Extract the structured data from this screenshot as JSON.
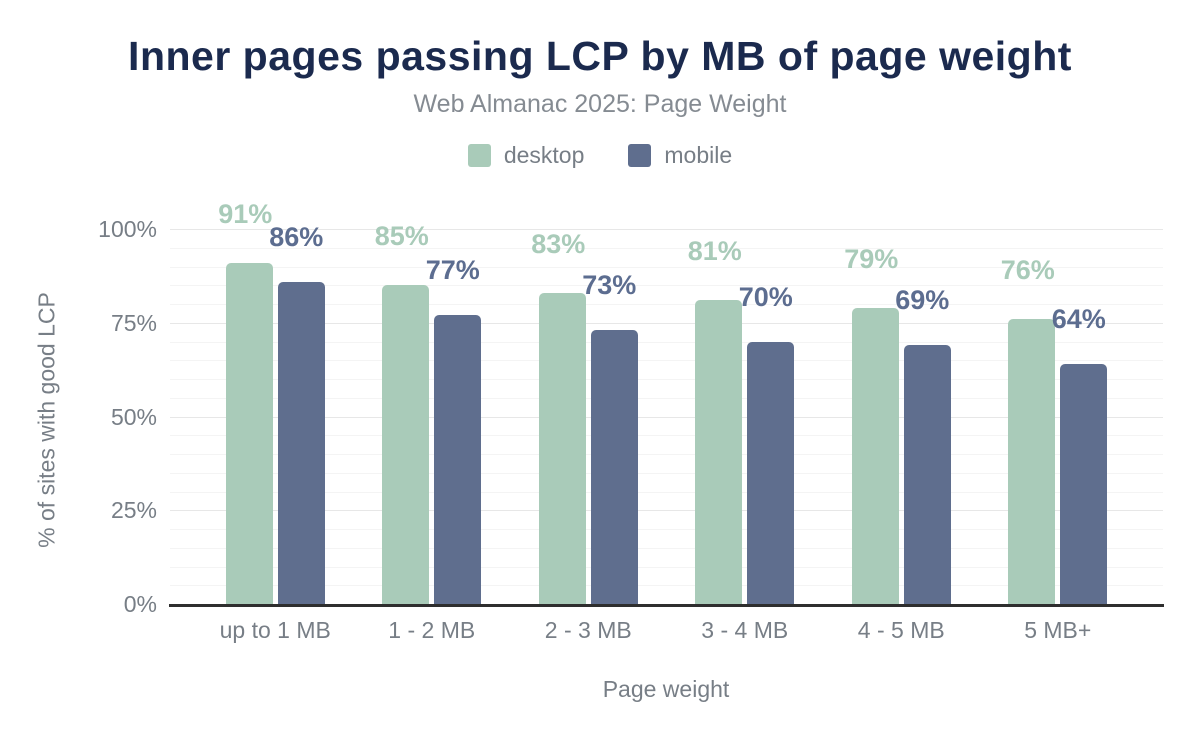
{
  "header": {
    "title": "Inner pages passing LCP by MB of page weight",
    "subtitle": "Web Almanac 2025: Page Weight"
  },
  "legend": {
    "items": [
      {
        "label": "desktop",
        "color": "#a9cbb9"
      },
      {
        "label": "mobile",
        "color": "#5f6e8e"
      }
    ]
  },
  "chart_data": {
    "type": "bar",
    "title": "Inner pages passing LCP by MB of page weight",
    "subtitle": "Web Almanac 2025: Page Weight",
    "categories": [
      "up to 1 MB",
      "1 - 2 MB",
      "2 - 3 MB",
      "3 - 4 MB",
      "4 - 5 MB",
      "5 MB+"
    ],
    "series": [
      {
        "name": "desktop",
        "color": "#a9cbb9",
        "label_color": "#a9cbb9",
        "values": [
          91,
          85,
          83,
          81,
          79,
          76
        ]
      },
      {
        "name": "mobile",
        "color": "#5f6e8e",
        "label_color": "#5c6d90",
        "values": [
          86,
          77,
          73,
          70,
          69,
          64
        ]
      }
    ],
    "data_label_suffix": "%",
    "xlabel": "Page weight",
    "ylabel": "% of sites with good LCP",
    "ylim": [
      0,
      100
    ],
    "yticks": [
      {
        "value": 0,
        "label": "0%"
      },
      {
        "value": 25,
        "label": "25%"
      },
      {
        "value": 50,
        "label": "50%"
      },
      {
        "value": 75,
        "label": "75%"
      },
      {
        "value": 100,
        "label": "100%"
      }
    ],
    "minor_grid_step": 5,
    "grid": "horizontal",
    "legend_position": "top"
  },
  "colors": {
    "title": "#1b2a4e",
    "secondary_text": "#777e86",
    "axis_line": "#2e2e2e",
    "grid_major": "#e7e7e7",
    "grid_minor": "#f4f4f4",
    "background": "#ffffff",
    "desktop": "#a9cbb9",
    "mobile": "#5f6e8e"
  }
}
